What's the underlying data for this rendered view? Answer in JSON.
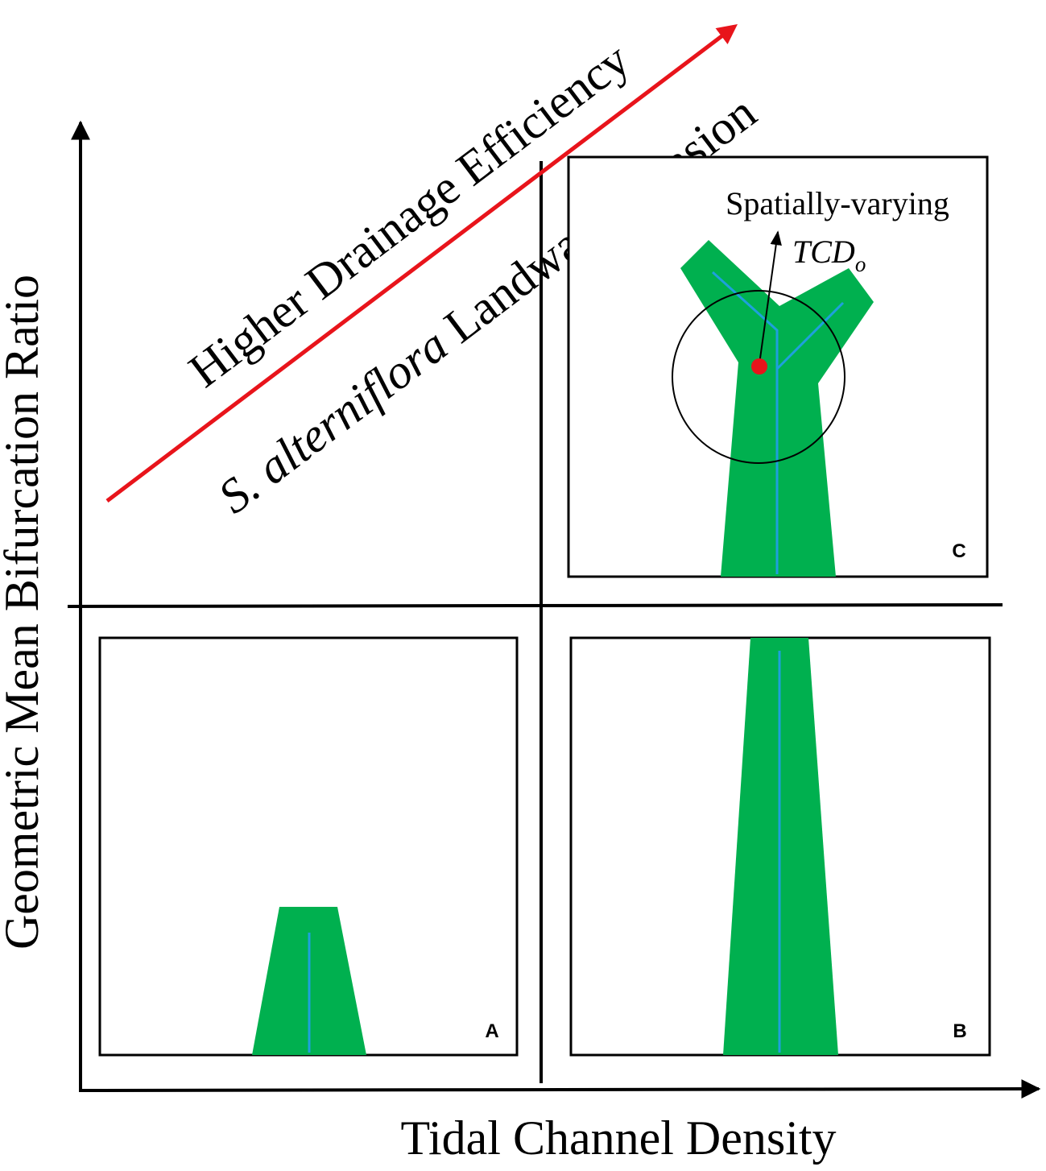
{
  "axes": {
    "x_label": "Tidal Channel Density",
    "y_label": "Geometric Mean Bifurcation Ratio"
  },
  "trend": {
    "upper_label": "Higher Drainage Efficiency",
    "lower_label_italic": "S. alterniflora",
    "lower_label_rest": " Landward Invasion",
    "arrow_color": "#e8141b"
  },
  "panels": {
    "a": {
      "label": "A"
    },
    "b": {
      "label": "B"
    },
    "c": {
      "label": "C",
      "annotation": "Spatially-varying",
      "symbol_main": "TCD",
      "symbol_sub": "o"
    }
  },
  "colors": {
    "marsh": "#00b04f",
    "channel": "#1ea0dc",
    "point": "#e8141b",
    "lines": "#000000"
  }
}
